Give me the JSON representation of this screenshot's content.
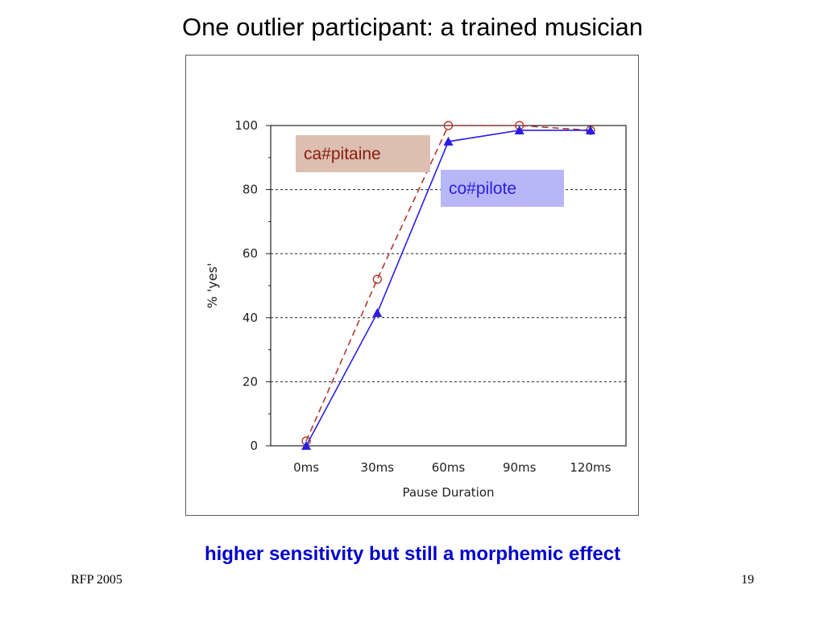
{
  "slide": {
    "title": "One outlier participant: a trained musician",
    "caption": "higher sensitivity but still a morphemic effect",
    "footer_left": "RFP 2005",
    "page_number": "19"
  },
  "colors": {
    "series_capitaine": "#b03a2e",
    "series_copilote": "#2a1ee0",
    "label_capitaine_bg": "#dcbfb0",
    "label_copilote_bg": "#b7b7f8",
    "caption": "#0000cc"
  },
  "chart_data": {
    "type": "line",
    "categories": [
      "0ms",
      "30ms",
      "60ms",
      "90ms",
      "120ms"
    ],
    "xlabel": "Pause Duration",
    "ylabel": "% 'yes'",
    "ylim": [
      0,
      100
    ],
    "yticks": [
      "0",
      "20",
      "40",
      "60",
      "80",
      "100"
    ],
    "grid": "horizontal dotted",
    "series": [
      {
        "name": "ca#pitaine",
        "values": [
          1.5,
          52,
          100,
          100,
          98.5
        ],
        "marker": "open-circle",
        "line": "dashed"
      },
      {
        "name": "co#pilote",
        "values": [
          0,
          41.5,
          95,
          98.5,
          98.5
        ],
        "marker": "filled-triangle",
        "line": "solid"
      }
    ]
  }
}
